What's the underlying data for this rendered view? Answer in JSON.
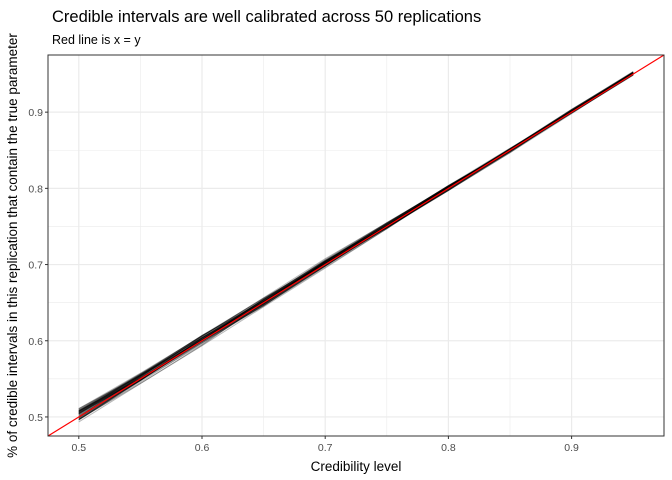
{
  "chart_data": {
    "type": "line",
    "title": "Credible intervals are well calibrated across 50 replications",
    "subtitle": "Red line is x = y",
    "xlabel": "Credibility level",
    "ylabel": "% of credible intervals in this replication that contain the true parameter",
    "xlim": [
      0.475,
      0.975
    ],
    "ylim": [
      0.475,
      0.975
    ],
    "x_ticks": [
      0.5,
      0.6,
      0.7,
      0.8,
      0.9
    ],
    "y_ticks": [
      0.5,
      0.6,
      0.7,
      0.8,
      0.9
    ],
    "x_tick_labels": [
      "0.5",
      "0.6",
      "0.7",
      "0.8",
      "0.9"
    ],
    "y_tick_labels": [
      "0.5",
      "0.6",
      "0.7",
      "0.8",
      "0.9"
    ],
    "credibility_levels": [
      0.5,
      0.55,
      0.6,
      0.65,
      0.7,
      0.75,
      0.8,
      0.85,
      0.9,
      0.95
    ],
    "replications": 50,
    "replication_coverage_range": {
      "low": [
        0.487,
        0.535,
        0.585,
        0.636,
        0.688,
        0.74,
        0.791,
        0.842,
        0.894,
        0.945
      ],
      "high": [
        0.518,
        0.567,
        0.617,
        0.666,
        0.715,
        0.762,
        0.81,
        0.858,
        0.908,
        0.957
      ]
    },
    "reference_line": {
      "slope": 1,
      "intercept": 0
    },
    "grid": true,
    "colors": {
      "replication_lines": "#000000",
      "reference_line": "#ff0000",
      "grid": "#ebebeb",
      "panel_border": "#333333"
    }
  }
}
